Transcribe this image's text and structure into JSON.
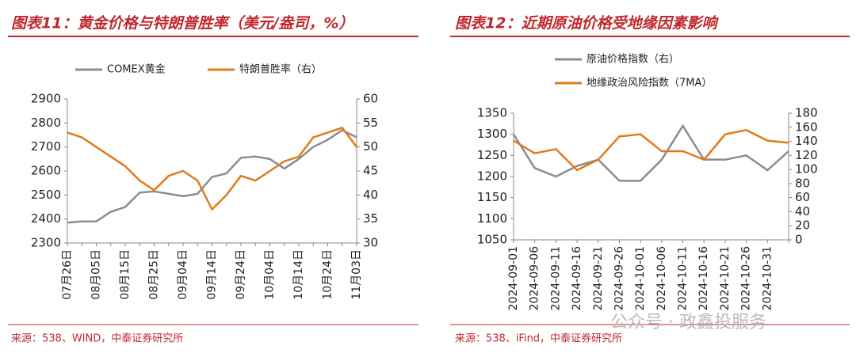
{
  "chart_data": [
    {
      "type": "line",
      "title": "图表11：黄金价格与特朗普胜率（美元/盎司，%）",
      "source": "来源：538、WIND，中泰证券研究所",
      "categories": [
        "07月26日",
        null,
        "08月05日",
        null,
        "08月15日",
        null,
        "08月25日",
        null,
        "09月04日",
        null,
        "09月14日",
        null,
        "09月24日",
        null,
        "10月04日",
        null,
        "10月14日",
        null,
        "10月24日",
        null,
        "11月03日"
      ],
      "series": [
        {
          "name": "COMEX黄金",
          "color": "#8c8c8c",
          "values": [
            2385,
            2390,
            2390,
            2430,
            2450,
            2510,
            2515,
            2505,
            2495,
            2505,
            2575,
            2590,
            2655,
            2660,
            2650,
            2610,
            2650,
            2700,
            2730,
            2770,
            2740
          ]
        },
        {
          "name": "特朗普胜率（右）",
          "color": "#e07b1a",
          "axis": "y2",
          "values": [
            53,
            52,
            50,
            48,
            46,
            43,
            41,
            44,
            45,
            43,
            37,
            40,
            44,
            43,
            45,
            47,
            48,
            52,
            53,
            54,
            50
          ]
        }
      ],
      "ylim": [
        2300,
        2900
      ],
      "yticks": [
        2300,
        2400,
        2500,
        2600,
        2700,
        2800,
        2900
      ],
      "y2lim": [
        30,
        60
      ],
      "y2ticks": [
        30,
        35,
        40,
        45,
        50,
        55,
        60
      ]
    },
    {
      "type": "line",
      "title": "图表12：近期原油价格受地缘因素影响",
      "source": "来源：538、iFind，中泰证券研究所",
      "categories": [
        "2024-09-01",
        "2024-09-06",
        "2024-09-11",
        "2024-09-16",
        "2024-09-21",
        "2024-09-26",
        "2024-10-01",
        "2024-10-06",
        "2024-10-11",
        "2024-10-16",
        "2024-10-21",
        "2024-10-26",
        "2024-10-31",
        null
      ],
      "series": [
        {
          "name": "原油价格指数（右）",
          "color": "#8c8c8c",
          "axis": "y2",
          "values": [
            150,
            102,
            90,
            105,
            114,
            84,
            84,
            114,
            162,
            114,
            114,
            120,
            99,
            126
          ]
        },
        {
          "name": "地缘政治风险指数（7MA）",
          "color": "#e07b1a",
          "values": [
            1285,
            1255,
            1265,
            1215,
            1240,
            1295,
            1300,
            1260,
            1260,
            1240,
            1300,
            1310,
            1285,
            1280
          ]
        }
      ],
      "ylim": [
        1050,
        1350
      ],
      "yticks": [
        1050,
        1100,
        1150,
        1200,
        1250,
        1300,
        1350
      ],
      "y2lim": [
        0,
        180
      ],
      "y2ticks": [
        0,
        20,
        40,
        60,
        80,
        100,
        120,
        140,
        160,
        180
      ]
    }
  ],
  "watermark": "公众号 · 政鑫投服务"
}
